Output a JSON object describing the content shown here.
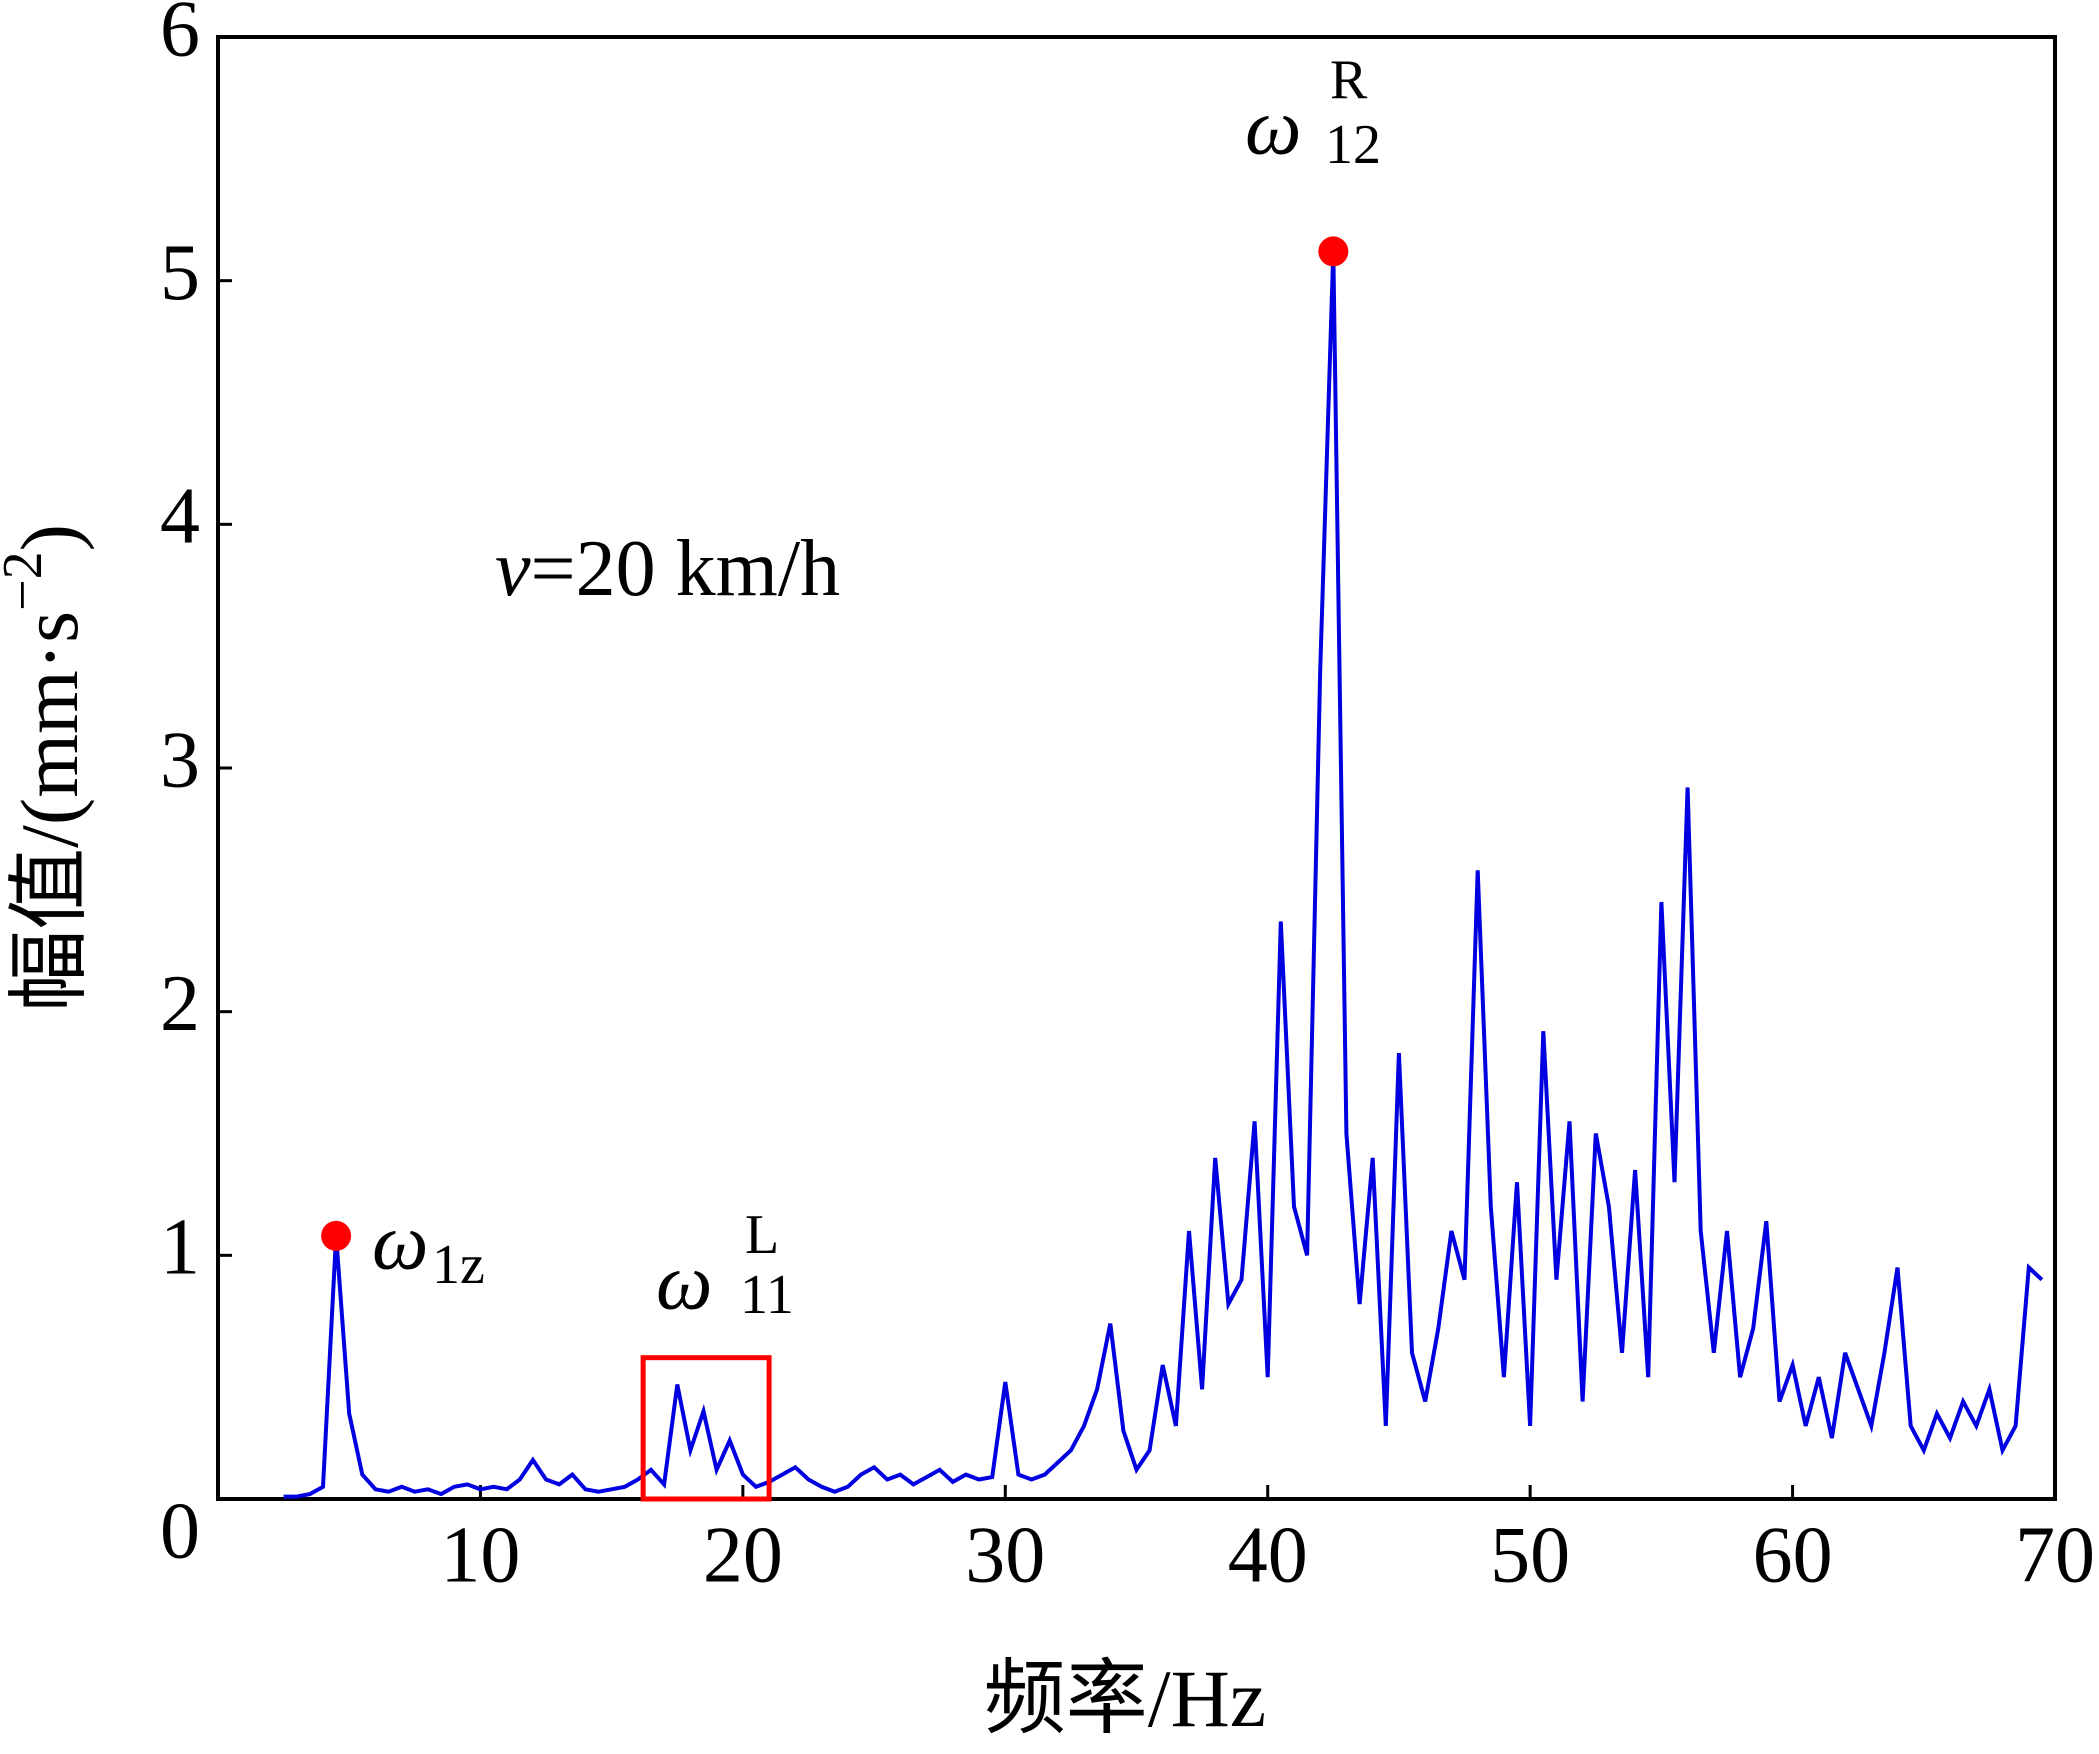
{
  "chart_data": {
    "type": "line",
    "x_label": "频率/Hz",
    "y_label": {
      "text": "幅值/(mm·s",
      "sup": "−2",
      "close": ")"
    },
    "x": [
      2.5,
      3,
      3.5,
      4,
      4.5,
      5,
      5.5,
      6,
      6.5,
      7,
      7.5,
      8,
      8.5,
      9,
      9.5,
      10,
      10.5,
      11,
      11.5,
      12,
      12.5,
      13,
      13.5,
      14,
      14.5,
      15,
      15.5,
      16,
      16.5,
      17,
      17.5,
      18,
      18.5,
      19,
      19.5,
      20,
      20.5,
      21,
      21.5,
      22,
      22.5,
      23,
      23.5,
      24,
      24.5,
      25,
      25.5,
      26,
      26.5,
      27,
      27.5,
      28,
      28.5,
      29,
      29.5,
      30,
      30.5,
      31,
      31.5,
      32,
      32.5,
      33,
      33.5,
      34,
      34.5,
      35,
      35.5,
      36,
      36.5,
      37,
      37.5,
      38,
      38.5,
      39,
      39.5,
      40,
      40.5,
      41,
      41.5,
      42,
      42.5,
      43,
      43.5,
      44,
      44.5,
      45,
      45.5,
      46,
      46.5,
      47,
      47.5,
      48,
      48.5,
      49,
      49.5,
      50,
      50.5,
      51,
      51.5,
      52,
      52.5,
      53,
      53.5,
      54,
      54.5,
      55,
      55.5,
      56,
      56.5,
      57,
      57.5,
      58,
      58.5,
      59,
      59.5,
      60,
      60.5,
      61,
      61.5,
      62,
      62.5,
      63,
      63.5,
      64,
      64.5,
      65,
      65.5,
      66,
      66.5,
      67,
      67.5,
      68,
      68.5,
      69,
      69.5
    ],
    "series": [
      {
        "color": "#0000e0",
        "values": [
          0.01,
          0.01,
          0.02,
          0.05,
          1.08,
          0.35,
          0.1,
          0.04,
          0.03,
          0.05,
          0.03,
          0.04,
          0.02,
          0.05,
          0.06,
          0.04,
          0.05,
          0.04,
          0.08,
          0.16,
          0.08,
          0.06,
          0.1,
          0.04,
          0.03,
          0.04,
          0.05,
          0.08,
          0.12,
          0.06,
          0.47,
          0.2,
          0.36,
          0.12,
          0.24,
          0.1,
          0.05,
          0.07,
          0.1,
          0.13,
          0.08,
          0.05,
          0.03,
          0.05,
          0.1,
          0.13,
          0.08,
          0.1,
          0.06,
          0.09,
          0.12,
          0.07,
          0.1,
          0.08,
          0.09,
          0.48,
          0.1,
          0.08,
          0.1,
          0.15,
          0.2,
          0.3,
          0.45,
          0.72,
          0.28,
          0.12,
          0.2,
          0.55,
          0.3,
          1.1,
          0.45,
          1.4,
          0.8,
          0.9,
          1.55,
          0.5,
          2.37,
          1.2,
          1.0,
          3.4,
          5.12,
          1.5,
          0.8,
          1.4,
          0.3,
          1.83,
          0.6,
          0.4,
          0.7,
          1.1,
          0.9,
          2.58,
          1.2,
          0.5,
          1.3,
          0.3,
          1.92,
          0.9,
          1.55,
          0.4,
          1.5,
          1.2,
          0.6,
          1.35,
          0.5,
          2.45,
          1.3,
          2.92,
          1.1,
          0.6,
          1.1,
          0.5,
          0.7,
          1.14,
          0.4,
          0.55,
          0.3,
          0.5,
          0.25,
          0.6,
          0.45,
          0.3,
          0.6,
          0.95,
          0.3,
          0.2,
          0.35,
          0.25,
          0.4,
          0.3,
          0.45,
          0.2,
          0.3,
          0.95,
          0.9
        ]
      }
    ],
    "peaks": {
      "x": [
        4.5,
        42.5
      ],
      "values": [
        1.08,
        5.12
      ],
      "color": "#ff0000"
    },
    "highlight_box": {
      "x": [
        16.2,
        21
      ],
      "y": [
        0,
        0.58
      ],
      "color": "#ff0000"
    },
    "annotations": [
      {
        "symbol": "ω",
        "sub": "1z"
      },
      {
        "symbol": "ω",
        "sup": "L",
        "sub": "11"
      },
      {
        "symbol": "ω",
        "sup": "R",
        "sub": "12"
      }
    ],
    "speed_label": {
      "variable": "v",
      "text": "=20 km/h"
    },
    "xlim": [
      0,
      70
    ],
    "xticks": [
      10,
      20,
      30,
      40,
      50,
      60,
      70
    ],
    "ylim": [
      0,
      6
    ],
    "yticks": [
      0,
      1,
      2,
      3,
      4,
      5,
      6
    ]
  }
}
